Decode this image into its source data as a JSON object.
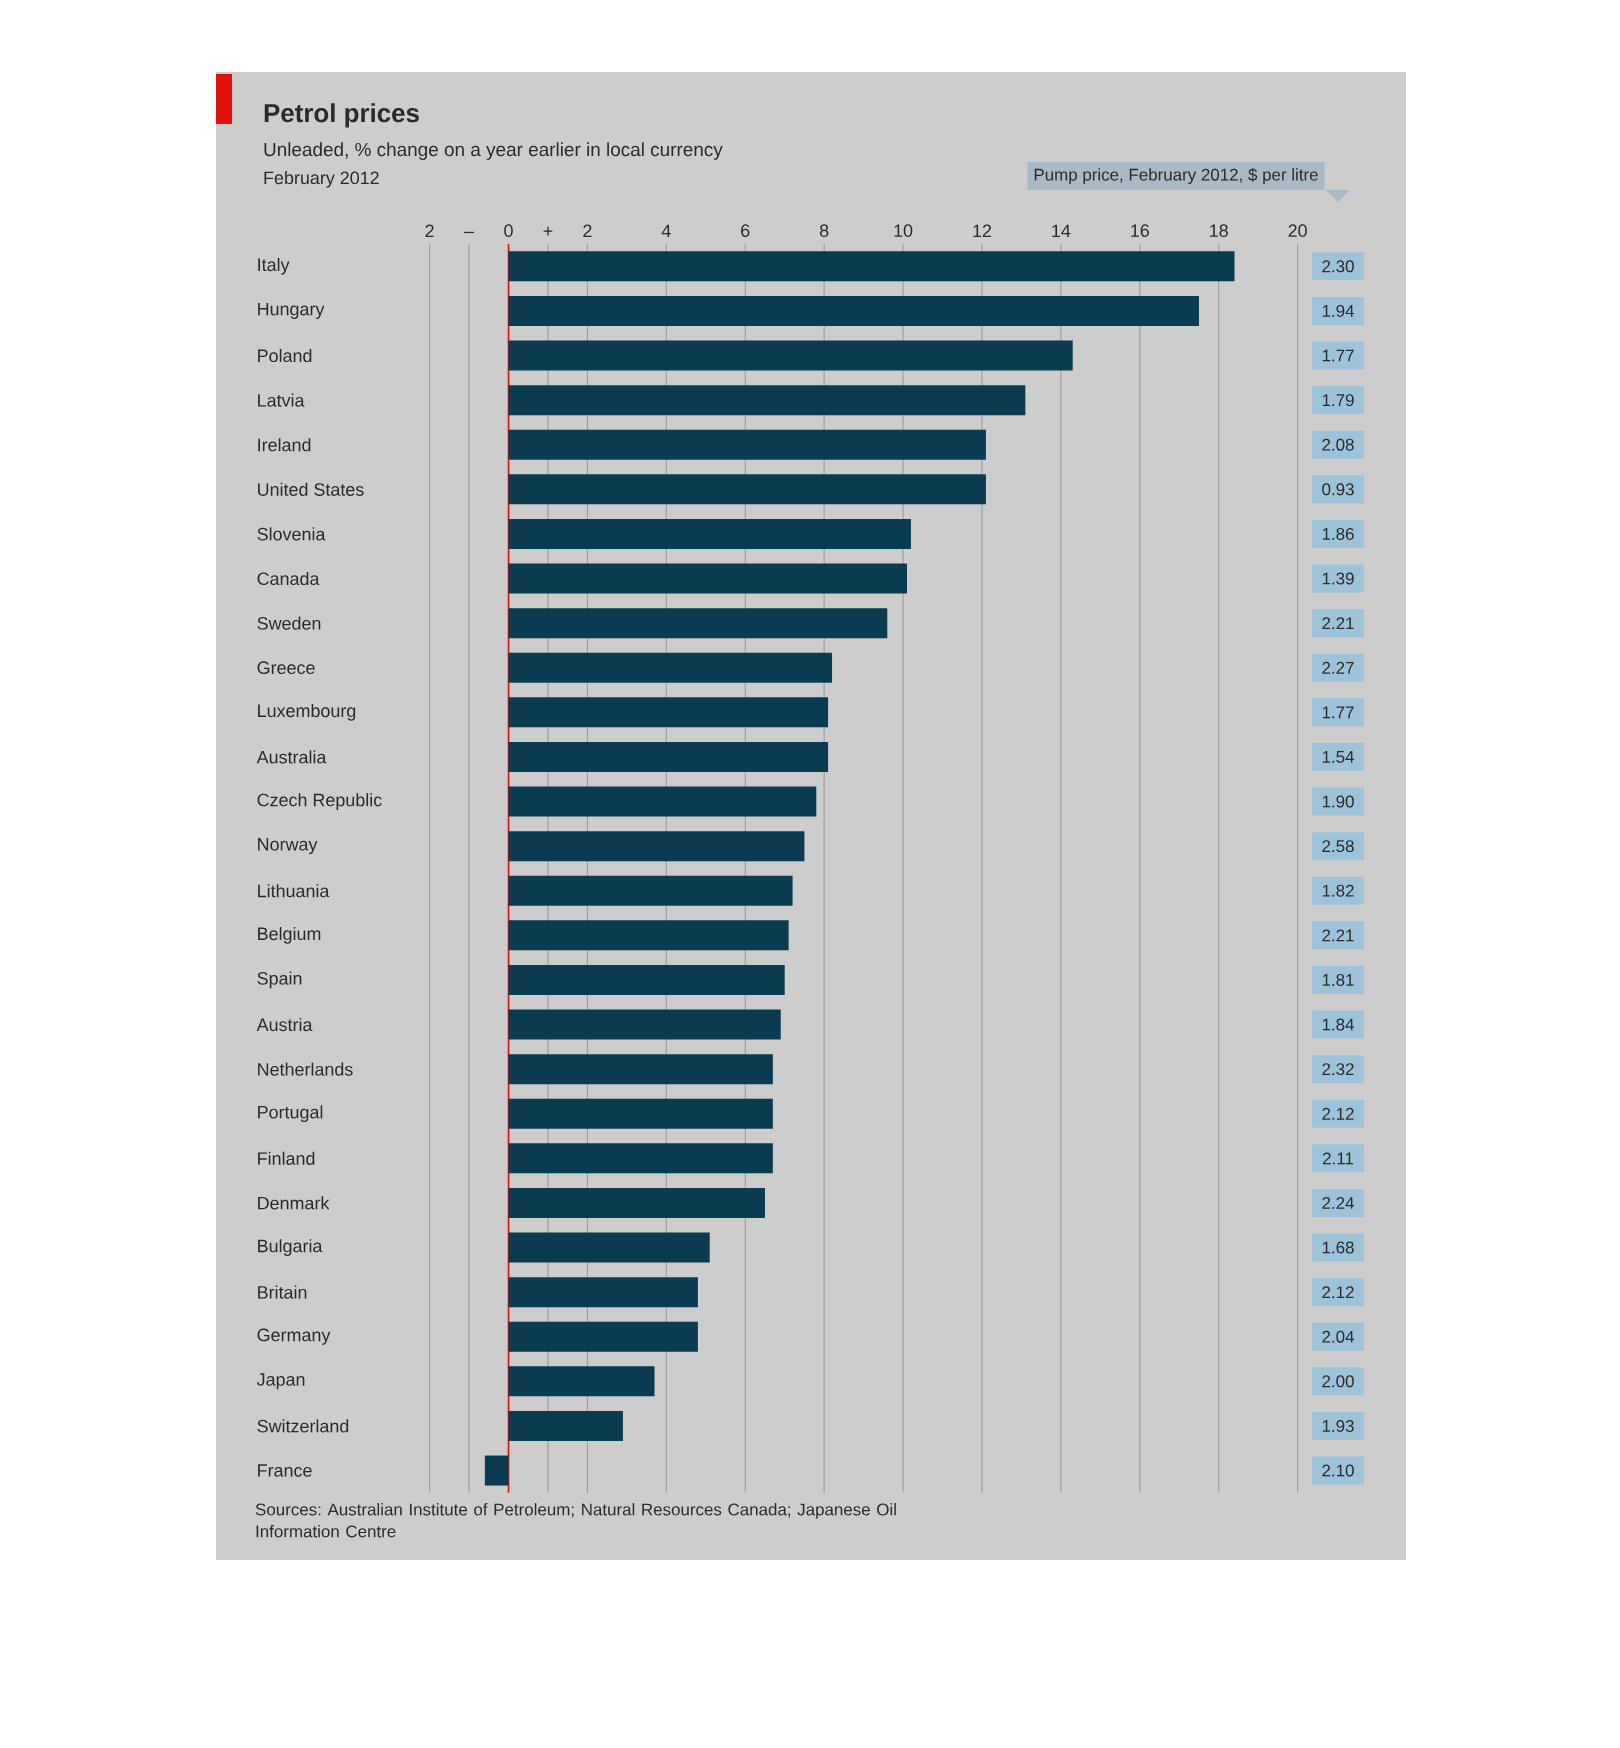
{
  "chart_data": [
    {
      "type": "bar",
      "orientation": "horizontal",
      "title": "Petrol prices",
      "subtitle": "Unleaded, % change on a year earlier in local currency",
      "annotations": [
        "February 2012",
        "Sources: Australian Institute of Petroleum; Natural Resources Canada; Japanese Oil Information Centre"
      ],
      "categories": [
        "Italy",
        "Hungary",
        "Poland",
        "Latvia",
        "Ireland",
        "United States",
        "Slovenia",
        "Canada",
        "Sweden",
        "Greece",
        "Luxembourg",
        "Australia",
        "Czech Republic",
        "Norway",
        "Lithuania",
        "Belgium",
        "Spain",
        "Austria",
        "Netherlands",
        "Portugal",
        "Finland",
        "Denmark",
        "Bulgaria",
        "Britain",
        "Germany",
        "Japan",
        "Switzerland",
        "France"
      ],
      "values": [
        18.4,
        17.5,
        14.3,
        13.1,
        12.1,
        12.1,
        10.2,
        10.1,
        9.6,
        8.2,
        8.1,
        8.1,
        7.8,
        7.5,
        7.2,
        7.1,
        7.0,
        6.9,
        6.7,
        6.7,
        6.7,
        6.5,
        5.1,
        4.8,
        4.8,
        3.7,
        2.9,
        -0.6
      ],
      "color": "#0b3b50",
      "xlim": [
        -2,
        20
      ],
      "xticks": [
        {
          "value": -2,
          "label": "2"
        },
        {
          "value": -1,
          "label": "–"
        },
        0,
        {
          "value": 1,
          "label": "+"
        },
        2,
        4,
        6,
        8,
        10,
        12,
        14,
        16,
        18,
        20
      ],
      "grid": "x",
      "ref_lines": [
        {
          "axis": "x",
          "value": 0,
          "label": null,
          "color": "#e3120b"
        }
      ]
    },
    {
      "type": "other",
      "title": "Pump price, February 2012, $ per litre",
      "color": "#9dc3da",
      "values": [
        2.3,
        1.94,
        1.77,
        1.79,
        2.08,
        0.93,
        1.86,
        1.39,
        2.21,
        2.27,
        1.77,
        1.54,
        1.9,
        2.58,
        1.82,
        2.21,
        1.81,
        1.84,
        2.32,
        2.12,
        2.11,
        2.24,
        1.68,
        2.12,
        2.04,
        2.0,
        1.93,
        2.1
      ],
      "value_labels": [
        "2.30",
        "1.94",
        "1.77",
        "1.79",
        "2.08",
        "0.93",
        "1.86",
        "1.39",
        "2.21",
        "2.27",
        "1.77",
        "1.54",
        "1.90",
        "2.58",
        "1.82",
        "2.21",
        "1.81",
        "1.84",
        "2.32",
        "2.12",
        "2.11",
        "2.24",
        "1.68",
        "2.12",
        "2.04",
        "2.00",
        "1.93",
        "2.10"
      ]
    }
  ]
}
